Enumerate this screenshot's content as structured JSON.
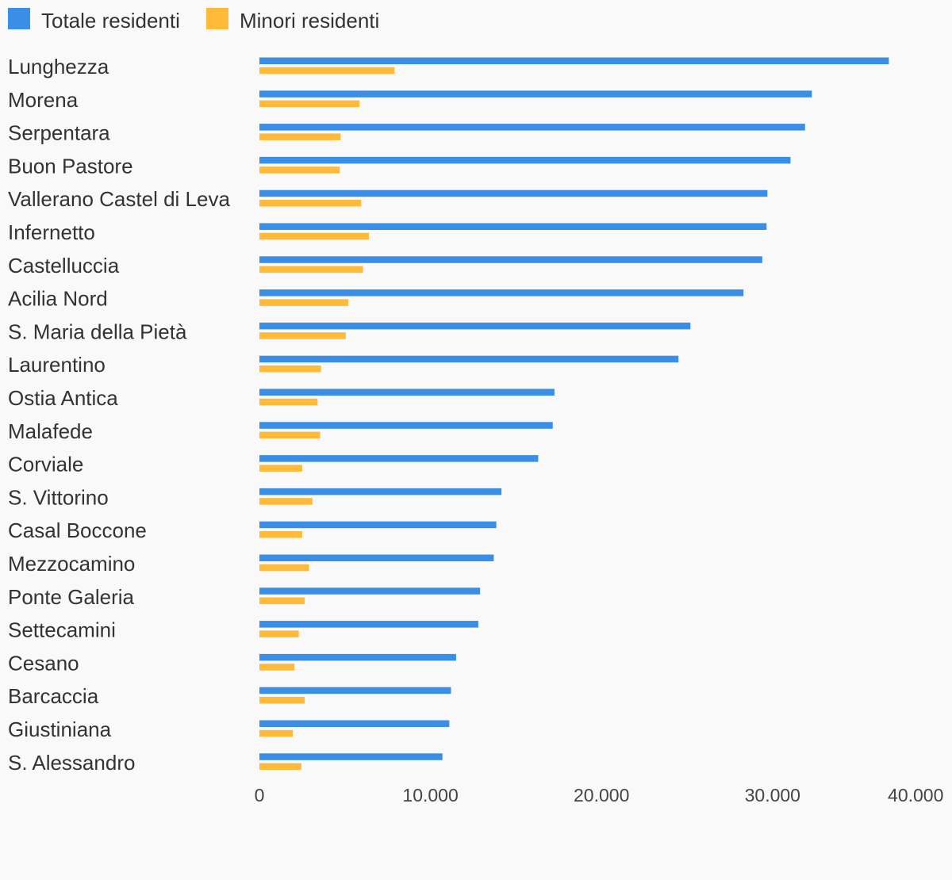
{
  "chart_data": {
    "type": "bar",
    "orientation": "horizontal",
    "categories": [
      "Lunghezza",
      "Morena",
      "Serpentara",
      "Buon Pastore",
      "Vallerano Castel di Leva",
      "Infernetto",
      "Castelluccia",
      "Acilia Nord",
      "S. Maria della Pietà",
      "Laurentino",
      "Ostia Antica",
      "Malafede",
      "Corviale",
      "S. Vittorino",
      "Casal Boccone",
      "Mezzocamino",
      "Ponte Galeria",
      "Settecamini",
      "Cesano",
      "Barcaccia",
      "Giustiniana",
      "S. Alessandro"
    ],
    "series": [
      {
        "name": "Totale residenti",
        "color": "#3a8ee6",
        "values": [
          36800,
          32300,
          31900,
          31050,
          29700,
          29650,
          29400,
          28300,
          25200,
          24500,
          17250,
          17150,
          16300,
          14150,
          13850,
          13700,
          12900,
          12800,
          11500,
          11200,
          11100,
          10700
        ]
      },
      {
        "name": "Minori residenti",
        "color": "#ffba3a",
        "values": [
          7900,
          5850,
          4750,
          4700,
          5950,
          6400,
          6050,
          5200,
          5050,
          3600,
          3400,
          3550,
          2500,
          3100,
          2500,
          2900,
          2650,
          2300,
          2050,
          2650,
          1950,
          2450
        ]
      }
    ],
    "xlim": [
      0,
      40000
    ],
    "xticks": [
      0,
      10000,
      20000,
      30000,
      40000
    ],
    "xtick_labels": [
      "0",
      "10.000",
      "20.000",
      "30.000",
      "40.000"
    ],
    "legend_position": "top-left",
    "grid": false,
    "title": "",
    "xlabel": "",
    "ylabel": ""
  }
}
